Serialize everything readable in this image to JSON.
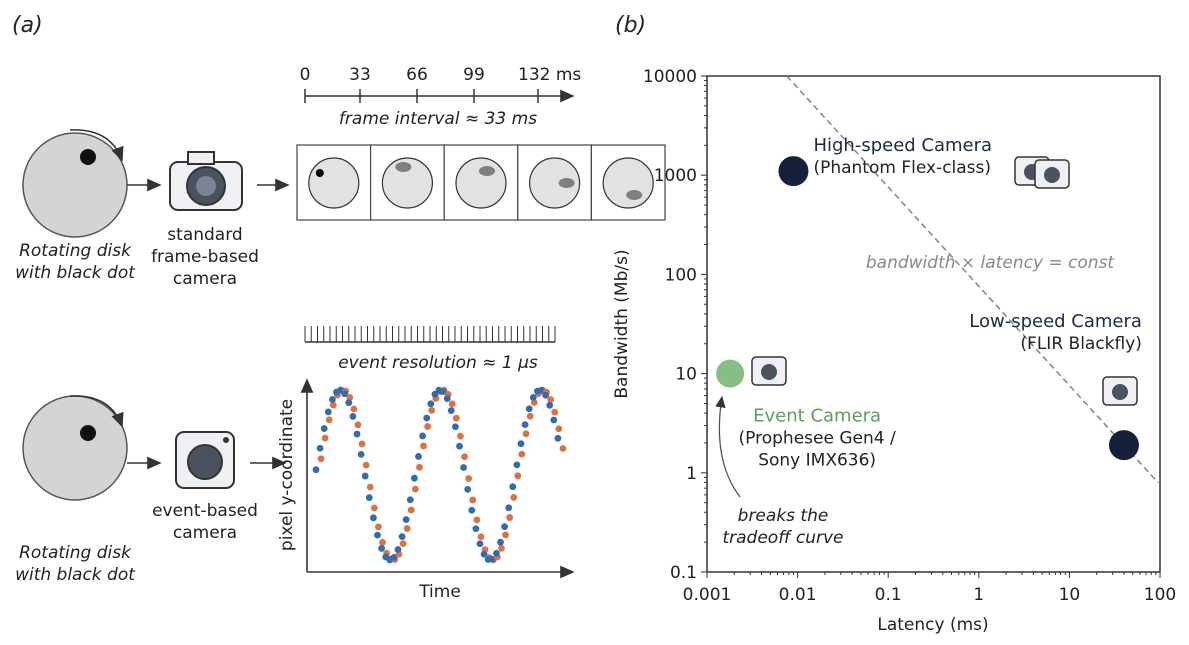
{
  "panel_a": {
    "label": "(a)",
    "timeline": {
      "ticks": [
        "0",
        "33",
        "66",
        "99",
        "132 ms"
      ],
      "caption": "frame interval ≈ 33 ms"
    },
    "top": {
      "disk": [
        "Rotating disk",
        "with black dot"
      ],
      "camera": [
        "standard",
        "frame-based",
        "camera"
      ]
    },
    "event_ruler": {
      "caption": "event resolution ≈ 1 μs"
    },
    "bottom": {
      "disk": [
        "Rotating disk",
        "with black dot"
      ],
      "camera": [
        "event-based",
        "camera"
      ]
    },
    "plot": {
      "ylabel": "pixel y-coordinate",
      "xlabel": "Time"
    }
  },
  "chart_data": [
    {
      "type": "scatter",
      "panel_label": "(b)",
      "xlabel": "Latency (ms)",
      "ylabel": "Bandwidth (Mb/s)",
      "xscale": "log",
      "yscale": "log",
      "xlim": [
        0.001,
        100
      ],
      "ylim": [
        0.1,
        10000
      ],
      "xticks": [
        0.001,
        0.01,
        0.1,
        1,
        10,
        100
      ],
      "yticks": [
        0.1,
        1,
        10,
        100,
        1000,
        10000
      ],
      "curve": {
        "label": "bandwidth × latency = const",
        "const": 76,
        "color": "#888888"
      },
      "series": [
        {
          "name": "High-speed Camera",
          "detail": [
            "(Phantom Flex-class)"
          ],
          "color": "#15213a",
          "text_color": "#1c2a44",
          "x": [
            0.009
          ],
          "values": [
            1100
          ]
        },
        {
          "name": "Low-speed Camera",
          "detail": [
            "(FLIR Blackfly)"
          ],
          "color": "#15213a",
          "text_color": "#1c2a44",
          "x": [
            40
          ],
          "values": [
            1.9
          ]
        },
        {
          "name": "Event Camera",
          "detail": [
            "(Prophesee Gen4 /",
            "Sony IMX636)"
          ],
          "color": "#86bf84",
          "text_color": "#5e9e5c",
          "x": [
            0.0018
          ],
          "values": [
            10
          ]
        }
      ],
      "annotation": [
        "breaks the",
        "tradeoff curve"
      ]
    }
  ]
}
